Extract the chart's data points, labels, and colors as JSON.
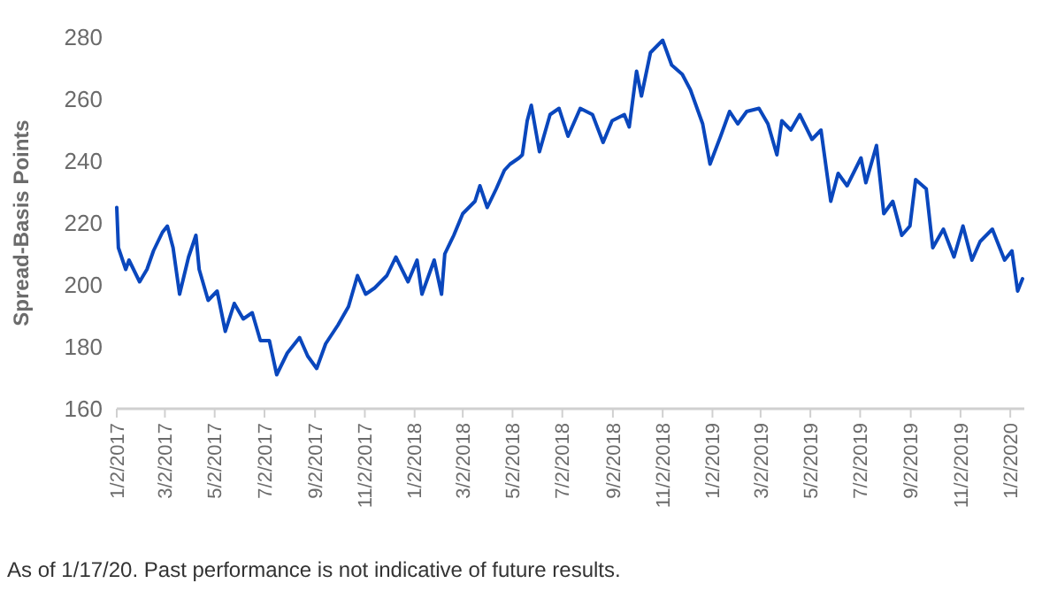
{
  "chart_data": {
    "type": "line",
    "ylabel": "Spread-Basis Points",
    "x": [
      "2017-01-02",
      "2017-01-04",
      "2017-01-13",
      "2017-01-17",
      "2017-01-30",
      "2017-02-08",
      "2017-02-16",
      "2017-02-27",
      "2017-03-05",
      "2017-03-12",
      "2017-03-20",
      "2017-03-31",
      "2017-04-09",
      "2017-04-13",
      "2017-04-24",
      "2017-05-05",
      "2017-05-15",
      "2017-05-26",
      "2017-06-06",
      "2017-06-17",
      "2017-06-27",
      "2017-07-08",
      "2017-07-17",
      "2017-07-30",
      "2017-08-14",
      "2017-08-24",
      "2017-09-04",
      "2017-09-15",
      "2017-09-30",
      "2017-10-13",
      "2017-10-24",
      "2017-11-03",
      "2017-11-14",
      "2017-11-29",
      "2017-12-10",
      "2017-12-25",
      "2018-01-05",
      "2018-01-11",
      "2018-01-26",
      "2018-02-04",
      "2018-02-08",
      "2018-02-19",
      "2018-03-02",
      "2018-03-17",
      "2018-03-23",
      "2018-04-01",
      "2018-04-12",
      "2018-04-22",
      "2018-04-29",
      "2018-05-10",
      "2018-05-14",
      "2018-05-20",
      "2018-05-25",
      "2018-06-04",
      "2018-06-17",
      "2018-06-28",
      "2018-07-09",
      "2018-07-24",
      "2018-08-08",
      "2018-08-21",
      "2018-09-01",
      "2018-09-16",
      "2018-09-22",
      "2018-10-01",
      "2018-10-07",
      "2018-10-18",
      "2018-11-02",
      "2018-11-13",
      "2018-11-26",
      "2018-12-06",
      "2018-12-21",
      "2018-12-30",
      "2019-01-12",
      "2019-01-23",
      "2019-02-02",
      "2019-02-13",
      "2019-02-28",
      "2019-03-11",
      "2019-03-22",
      "2019-03-28",
      "2019-04-08",
      "2019-04-19",
      "2019-05-04",
      "2019-05-15",
      "2019-05-27",
      "2019-06-05",
      "2019-06-16",
      "2019-07-03",
      "2019-07-09",
      "2019-07-22",
      "2019-07-31",
      "2019-08-11",
      "2019-08-22",
      "2019-09-01",
      "2019-09-08",
      "2019-09-21",
      "2019-09-29",
      "2019-10-12",
      "2019-10-25",
      "2019-11-05",
      "2019-11-16",
      "2019-11-26",
      "2019-12-11",
      "2019-12-26",
      "2020-01-04",
      "2020-01-11",
      "2020-01-17"
    ],
    "series": [
      {
        "color": "#0a47bd",
        "values": [
          225,
          212,
          205,
          208,
          201,
          205,
          211,
          217,
          219,
          212,
          197,
          209,
          216,
          205,
          195,
          198,
          185,
          194,
          189,
          191,
          182,
          182,
          171,
          178,
          183,
          177,
          173,
          181,
          187,
          193,
          203,
          197,
          199,
          203,
          209,
          201,
          208,
          197,
          208,
          197,
          210,
          216,
          223,
          227,
          232,
          225,
          231,
          237,
          239,
          241,
          242,
          253,
          258,
          243,
          255,
          257,
          248,
          257,
          255,
          246,
          253,
          255,
          251,
          269,
          261,
          275,
          279,
          271,
          268,
          263,
          252,
          239,
          248,
          256,
          252,
          256,
          257,
          252,
          242,
          253,
          250,
          255,
          247,
          250,
          227,
          236,
          232,
          241,
          233,
          245,
          223,
          227,
          216,
          219,
          234,
          231,
          212,
          218,
          209,
          219,
          208,
          214,
          218,
          208,
          211,
          198,
          202
        ]
      }
    ],
    "xlim": [
      "2017-01-02",
      "2020-01-17"
    ],
    "xticks": [
      {
        "value": "2017-01-02",
        "label": "1/2/2017"
      },
      {
        "value": "2017-03-02",
        "label": "3/2/2017"
      },
      {
        "value": "2017-05-02",
        "label": "5/2/2017"
      },
      {
        "value": "2017-07-02",
        "label": "7/2/2017"
      },
      {
        "value": "2017-09-02",
        "label": "9/2/2017"
      },
      {
        "value": "2017-11-02",
        "label": "11/2/2017"
      },
      {
        "value": "2018-01-02",
        "label": "1/2/2018"
      },
      {
        "value": "2018-03-02",
        "label": "3/2/2018"
      },
      {
        "value": "2018-05-02",
        "label": "5/2/2018"
      },
      {
        "value": "2018-07-02",
        "label": "7/2/2018"
      },
      {
        "value": "2018-09-02",
        "label": "9/2/2018"
      },
      {
        "value": "2018-11-02",
        "label": "11/2/2018"
      },
      {
        "value": "2019-01-02",
        "label": "1/2/2019"
      },
      {
        "value": "2019-03-02",
        "label": "3/2/2019"
      },
      {
        "value": "2019-05-02",
        "label": "5/2/2019"
      },
      {
        "value": "2019-07-02",
        "label": "7/2/2019"
      },
      {
        "value": "2019-09-02",
        "label": "9/2/2019"
      },
      {
        "value": "2019-11-02",
        "label": "11/2/2019"
      },
      {
        "value": "2020-01-02",
        "label": "1/2/2020"
      }
    ],
    "ylim": [
      160,
      280
    ],
    "yticks": [
      160,
      180,
      200,
      220,
      240,
      260,
      280
    ],
    "grid": false,
    "marker": "none",
    "line_style": "solid",
    "annotations": [
      "As of 1/17/20. Past performance is not indicative of future results."
    ]
  }
}
